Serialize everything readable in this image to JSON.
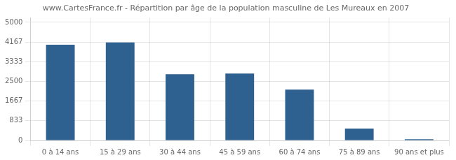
{
  "chart_data": {
    "type": "bar",
    "title": "www.CartesFrance.fr - Répartition par âge de la population masculine de Les Mureaux en 2007",
    "categories": [
      "0 à 14 ans",
      "15 à 29 ans",
      "30 à 44 ans",
      "45 à 59 ans",
      "60 à 74 ans",
      "75 à 89 ans",
      "90 ans et plus"
    ],
    "values": [
      4050,
      4150,
      2800,
      2830,
      2150,
      500,
      55
    ],
    "color": "#2e6090",
    "ylim": [
      0,
      5200
    ],
    "yticks": [
      0,
      833,
      1667,
      2500,
      3333,
      4167,
      5000
    ],
    "grid": true
  }
}
